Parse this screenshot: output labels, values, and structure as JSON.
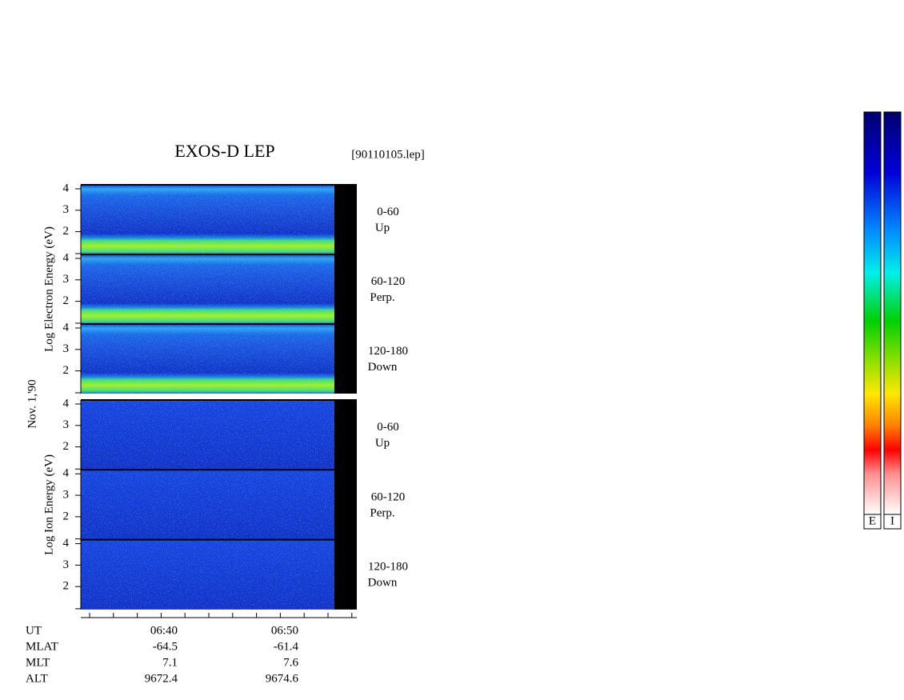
{
  "title": "EXOS-D LEP",
  "file_name": "[90110105.lep]",
  "date_label": "Nov. 1,'90",
  "electron": {
    "ylabel": "Log  Electron  Energy (eV)",
    "yticks": [
      2,
      3,
      4
    ],
    "panels": [
      {
        "angle": "0-60",
        "direction": "Up"
      },
      {
        "angle": "60-120",
        "direction": "Perp."
      },
      {
        "angle": "120-180",
        "direction": "Down"
      }
    ]
  },
  "ion": {
    "ylabel": "Log  Ion  Energy (eV)",
    "yticks": [
      2,
      3,
      4
    ],
    "panels": [
      {
        "angle": "0-60",
        "direction": "Up"
      },
      {
        "angle": "60-120",
        "direction": "Perp."
      },
      {
        "angle": "120-180",
        "direction": "Down"
      }
    ]
  },
  "ephemeris": {
    "rows": [
      [
        "UT",
        "06:40",
        "06:50"
      ],
      [
        "MLAT",
        "-64.5",
        "-61.4"
      ],
      [
        "MLT",
        "7.1",
        "7.6"
      ],
      [
        "ALT",
        "9672.4",
        "9674.6"
      ]
    ]
  },
  "colorbar_labels": [
    "E",
    "I"
  ]
}
